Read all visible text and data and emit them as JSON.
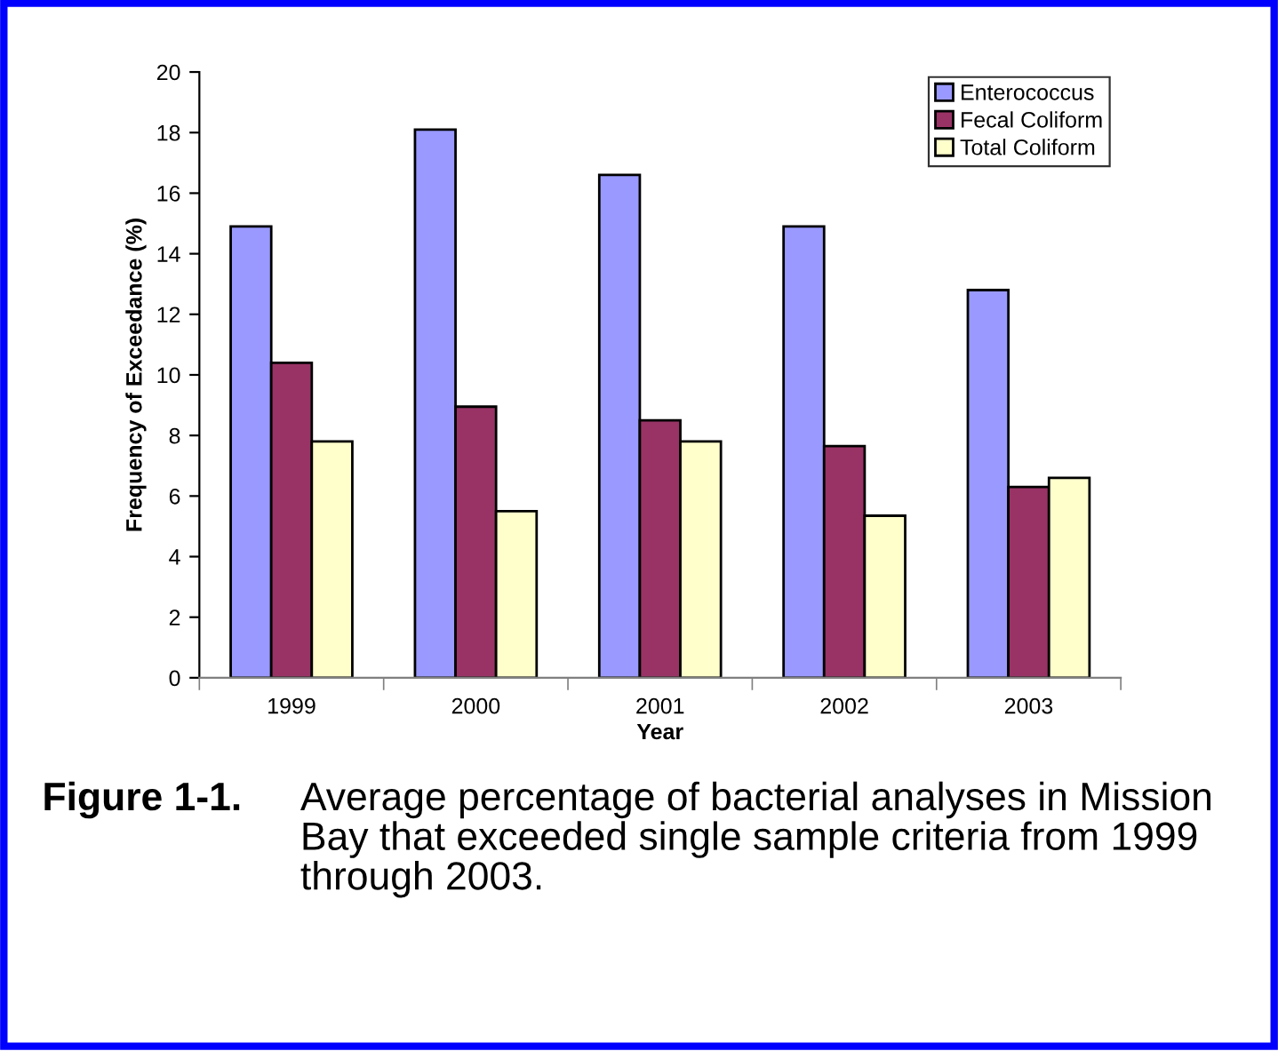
{
  "chart_data": {
    "type": "bar",
    "xlabel": "Year",
    "ylabel": "Frequency of Exceedance (%)",
    "categories": [
      "1999",
      "2000",
      "2001",
      "2002",
      "2003"
    ],
    "series": [
      {
        "name": "Enterococcus",
        "color": "#9999ff",
        "values": [
          14.9,
          18.1,
          16.6,
          14.9,
          12.8
        ]
      },
      {
        "name": "Fecal Coliform",
        "color": "#993366",
        "values": [
          10.4,
          8.95,
          8.5,
          7.65,
          6.3
        ]
      },
      {
        "name": "Total Coliform",
        "color": "#ffffcc",
        "values": [
          7.8,
          5.5,
          7.8,
          5.35,
          6.6
        ]
      }
    ],
    "ylim": [
      0,
      20
    ],
    "yticks": [
      0,
      2,
      4,
      6,
      8,
      10,
      12,
      14,
      16,
      18,
      20
    ],
    "grid": false,
    "legend": "top right",
    "annotations": [
      "Figure 1-1.",
      "Average percentage of bacterial analyses in Mission Bay that exceeded single sample criteria from 1999 through 2003."
    ]
  }
}
